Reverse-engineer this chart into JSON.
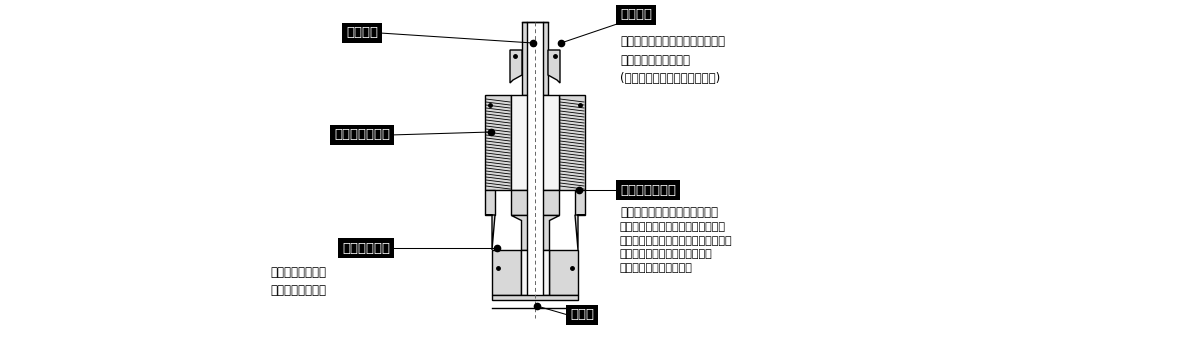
{
  "bg_color": "#ffffff",
  "fig_width": 11.98,
  "fig_height": 3.5,
  "dpi": 100,
  "labels": {
    "tube": "チューブ",
    "sleeve": "スリーブ",
    "union_nut": "ユニオンナット",
    "tube_holder": "チューブホルダ",
    "flare_edge": "フレアエッジ",
    "body": "ボディ"
  },
  "sleeve_desc": "金属スリーブによる強固な保持力\n軟質銅管にも使用可能\n(ウレタンチューブは使用不可)",
  "tube_holder_bold": "締付作業時のチューブ脱落防止",
  "tube_holder_desc": "チューブホールド機構により確实な\nチューブ挿入感触が得られ、チューブ\n締付作業時に、チューブが脱落\nすることもありません。",
  "flare_desc": "チューブが内側に\n変形するのを防止"
}
